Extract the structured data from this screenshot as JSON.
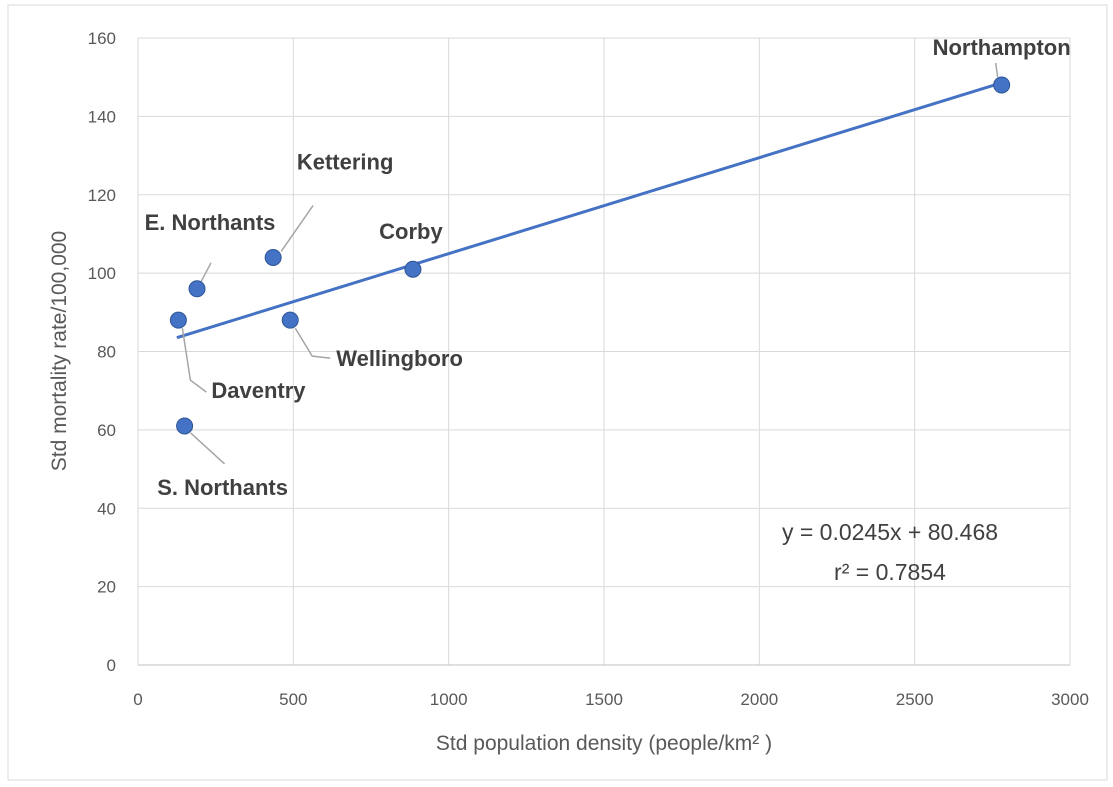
{
  "chart_data": {
    "type": "scatter",
    "title": "",
    "xlabel": "Std population density (people/km² )",
    "ylabel": "Std mortality rate/100,000",
    "xlim": [
      0,
      3000
    ],
    "ylim": [
      0,
      160
    ],
    "xticks": [
      0,
      500,
      1000,
      1500,
      2000,
      2500,
      3000
    ],
    "yticks": [
      0,
      20,
      40,
      60,
      80,
      100,
      120,
      140,
      160
    ],
    "grid": true,
    "legend": "none",
    "point_color": "#4472c4",
    "points": [
      {
        "name": "Northampton",
        "x": 2780,
        "y": 148
      },
      {
        "name": "Kettering",
        "x": 435,
        "y": 104
      },
      {
        "name": "Corby",
        "x": 885,
        "y": 101
      },
      {
        "name": "E. Northants",
        "x": 190,
        "y": 96
      },
      {
        "name": "Daventry",
        "x": 130,
        "y": 88
      },
      {
        "name": "Wellingboro",
        "x": 490,
        "y": 88
      },
      {
        "name": "S. Northants",
        "x": 150,
        "y": 61
      }
    ],
    "trendline": {
      "slope": 0.0245,
      "intercept": 80.468,
      "x_range": [
        125,
        2780
      ],
      "equation": "y = 0.0245x + 80.468",
      "r2": "r² = 0.7854"
    }
  }
}
